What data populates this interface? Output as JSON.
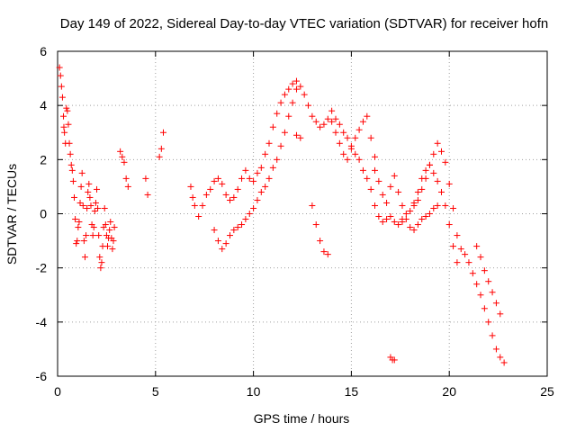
{
  "chart_data": {
    "type": "scatter",
    "title": "Day 149 of 2022, Sidereal Day-to-day VTEC variation (SDTVAR) for receiver hofn",
    "xlabel": "GPS time / hours",
    "ylabel": "SDTVAR / TECUs",
    "xlim": [
      0,
      25
    ],
    "ylim": [
      -6,
      6
    ],
    "xticks": [
      0,
      5,
      10,
      15,
      20,
      25
    ],
    "yticks": [
      -6,
      -4,
      -2,
      0,
      2,
      4,
      6
    ],
    "grid": true,
    "marker": "+",
    "color": "#ff0000",
    "series": [
      {
        "name": "SDTVAR",
        "x": [
          0.1,
          0.15,
          0.2,
          0.25,
          0.3,
          0.32,
          0.35,
          0.4,
          0.45,
          0.5,
          0.55,
          0.6,
          0.65,
          0.7,
          0.75,
          0.8,
          0.85,
          0.9,
          0.95,
          1.0,
          1.05,
          1.1,
          1.15,
          1.2,
          1.25,
          1.3,
          1.35,
          1.4,
          1.45,
          1.5,
          1.55,
          1.6,
          1.65,
          1.7,
          1.75,
          1.8,
          1.85,
          1.9,
          1.95,
          2.0,
          2.05,
          2.1,
          2.15,
          2.2,
          2.25,
          2.3,
          2.35,
          2.4,
          2.45,
          2.5,
          2.55,
          2.6,
          2.65,
          2.7,
          2.75,
          2.8,
          2.85,
          2.9,
          3.2,
          3.3,
          3.4,
          3.5,
          3.6,
          4.5,
          4.6,
          5.2,
          5.3,
          5.4,
          6.8,
          6.9,
          7.0,
          7.2,
          7.4,
          7.6,
          7.8,
          8.0,
          8.2,
          8.4,
          8.6,
          8.8,
          9.0,
          9.2,
          9.4,
          9.6,
          9.8,
          10.0,
          10.2,
          10.4,
          10.6,
          10.8,
          11.0,
          11.2,
          11.4,
          11.6,
          11.8,
          12.0,
          12.2,
          12.4,
          12.6,
          12.8,
          13.0,
          13.2,
          13.4,
          13.6,
          13.8,
          14.0,
          14.2,
          14.4,
          14.6,
          14.8,
          15.0,
          15.2,
          15.4,
          15.6,
          15.8,
          16.0,
          16.2,
          16.4,
          16.6,
          16.8,
          17.0,
          17.2,
          17.4,
          17.6,
          17.8,
          18.0,
          18.2,
          18.4,
          18.6,
          18.8,
          19.0,
          19.2,
          19.4,
          19.6,
          19.8,
          20.0,
          20.2,
          20.4,
          20.6,
          20.8,
          21.0,
          21.2,
          21.4,
          21.6,
          21.8,
          22.0,
          22.2,
          22.4,
          22.6,
          22.8,
          12.2,
          12.4,
          13.0,
          13.2,
          13.4,
          13.6,
          13.8,
          17.0,
          17.1,
          17.2,
          17.6,
          17.8,
          18.0,
          18.2,
          18.4,
          18.6,
          18.8,
          19.0,
          19.2,
          19.4,
          16.2,
          16.4,
          16.6,
          16.8,
          17.0,
          17.2,
          17.4,
          17.6,
          18.2,
          18.4,
          18.6,
          18.8,
          19.0,
          19.2,
          19.4,
          19.6,
          19.8,
          20.0,
          20.2,
          20.4,
          21.4,
          21.6,
          21.8,
          22.0,
          22.2,
          22.4,
          22.6,
          14.0,
          14.2,
          14.4,
          14.6,
          14.8,
          15.0,
          15.2,
          15.4,
          15.6,
          15.8,
          16.0,
          16.2,
          8.0,
          8.2,
          8.4,
          8.6,
          8.8,
          9.0,
          9.2,
          9.4,
          9.6,
          9.8,
          10.0,
          10.2,
          10.4,
          10.6,
          10.8,
          11.0,
          11.2,
          11.4,
          11.6,
          11.8,
          12.0,
          12.2
        ],
        "y": [
          5.4,
          5.1,
          4.7,
          4.3,
          3.6,
          3.2,
          3.0,
          2.6,
          3.9,
          3.8,
          3.3,
          2.6,
          2.2,
          1.8,
          1.6,
          1.2,
          0.6,
          -0.2,
          -1.1,
          -1.0,
          -0.5,
          -0.3,
          0.4,
          1.0,
          1.5,
          0.3,
          -1.0,
          -1.6,
          -0.8,
          0.2,
          0.8,
          1.1,
          0.6,
          0.3,
          -0.4,
          -0.8,
          -0.5,
          0.1,
          0.4,
          0.9,
          0.2,
          -0.8,
          -1.6,
          -2.0,
          -1.8,
          -1.2,
          -0.5,
          0.2,
          -0.4,
          -0.8,
          -1.2,
          -0.9,
          -0.6,
          -0.3,
          -0.9,
          -1.3,
          -1.0,
          -0.5,
          2.3,
          2.1,
          1.9,
          1.3,
          1.0,
          1.3,
          0.7,
          2.1,
          2.4,
          3.0,
          1.0,
          0.6,
          0.3,
          -0.1,
          0.3,
          0.7,
          0.9,
          1.2,
          1.3,
          1.1,
          0.7,
          0.5,
          0.6,
          0.9,
          1.3,
          1.6,
          1.3,
          1.2,
          1.5,
          1.7,
          2.2,
          2.6,
          3.2,
          3.7,
          4.1,
          4.4,
          4.6,
          4.8,
          4.9,
          4.7,
          4.4,
          4.0,
          3.6,
          3.4,
          3.2,
          3.3,
          3.5,
          3.8,
          3.5,
          3.3,
          3.0,
          2.8,
          2.5,
          2.2,
          2.0,
          1.6,
          1.3,
          0.9,
          0.3,
          -0.1,
          -0.3,
          -0.2,
          -0.1,
          -0.3,
          -0.4,
          -0.2,
          0.0,
          0.1,
          0.3,
          0.5,
          0.9,
          1.3,
          1.8,
          2.2,
          2.6,
          2.3,
          1.9,
          1.1,
          0.2,
          -0.8,
          -1.3,
          -1.5,
          -1.8,
          -2.2,
          -2.6,
          -3.0,
          -3.5,
          -4.0,
          -4.5,
          -5.0,
          -5.3,
          -5.5,
          2.9,
          2.8,
          0.3,
          -0.4,
          -1.0,
          -1.4,
          -1.5,
          -5.3,
          -5.4,
          -5.4,
          -0.3,
          -0.2,
          -0.5,
          -0.6,
          -0.4,
          -0.2,
          -0.1,
          0.0,
          0.2,
          0.3,
          1.6,
          1.2,
          0.7,
          0.4,
          1.0,
          1.4,
          0.8,
          0.3,
          0.4,
          0.8,
          1.3,
          1.6,
          1.8,
          1.5,
          1.2,
          0.8,
          0.3,
          -0.4,
          -1.2,
          -1.8,
          -1.2,
          -1.6,
          -2.1,
          -2.5,
          -2.9,
          -3.3,
          -3.7,
          3.4,
          3.0,
          2.6,
          2.2,
          2.0,
          2.4,
          2.8,
          3.1,
          3.4,
          3.6,
          2.8,
          2.1,
          -0.6,
          -1.0,
          -1.3,
          -1.1,
          -0.8,
          -0.6,
          -0.5,
          -0.4,
          -0.2,
          0.0,
          0.2,
          0.5,
          0.8,
          1.0,
          1.3,
          1.7,
          2.0,
          2.5,
          3.0,
          3.6,
          4.1,
          4.6
        ]
      }
    ]
  }
}
